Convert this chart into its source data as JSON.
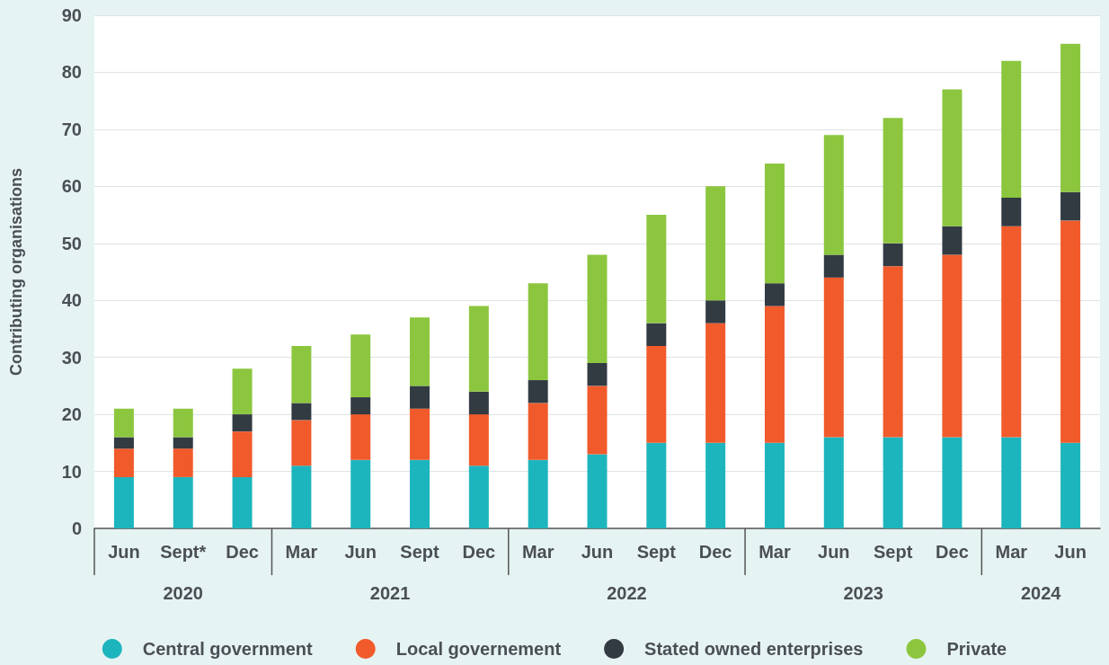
{
  "chart_data": {
    "type": "bar",
    "stacked": true,
    "ylabel": "Contributing organisations",
    "categories": [
      "Jun",
      "Sept*",
      "Dec",
      "Mar",
      "Jun",
      "Sept",
      "Dec",
      "Mar",
      "Jun",
      "Sept",
      "Dec",
      "Mar",
      "Jun",
      "Sept",
      "Dec",
      "Mar",
      "Jun"
    ],
    "series": [
      {
        "name": "Central government",
        "color": "#1db5bd",
        "values": [
          9,
          9,
          9,
          11,
          12,
          12,
          11,
          12,
          13,
          15,
          15,
          15,
          16,
          16,
          16,
          16,
          15
        ]
      },
      {
        "name": "Local governement",
        "color": "#f15a2b",
        "values": [
          5,
          5,
          8,
          8,
          8,
          9,
          9,
          10,
          12,
          17,
          21,
          24,
          28,
          30,
          32,
          37,
          39
        ]
      },
      {
        "name": "Stated owned enterprises",
        "color": "#323a42",
        "values": [
          2,
          2,
          3,
          3,
          3,
          4,
          4,
          4,
          4,
          4,
          4,
          4,
          4,
          4,
          5,
          5,
          5
        ]
      },
      {
        "name": "Private",
        "color": "#8cc63f",
        "values": [
          5,
          5,
          8,
          10,
          11,
          12,
          15,
          17,
          19,
          19,
          20,
          21,
          21,
          22,
          24,
          24,
          26
        ]
      }
    ],
    "ylim": [
      0,
      90
    ],
    "yticks": [
      0,
      10,
      20,
      30,
      40,
      50,
      60,
      70,
      80,
      90
    ],
    "annotations": [
      "2020",
      "2021",
      "2022",
      "2023",
      "2024"
    ],
    "grid": "y",
    "legend": "bottom"
  }
}
